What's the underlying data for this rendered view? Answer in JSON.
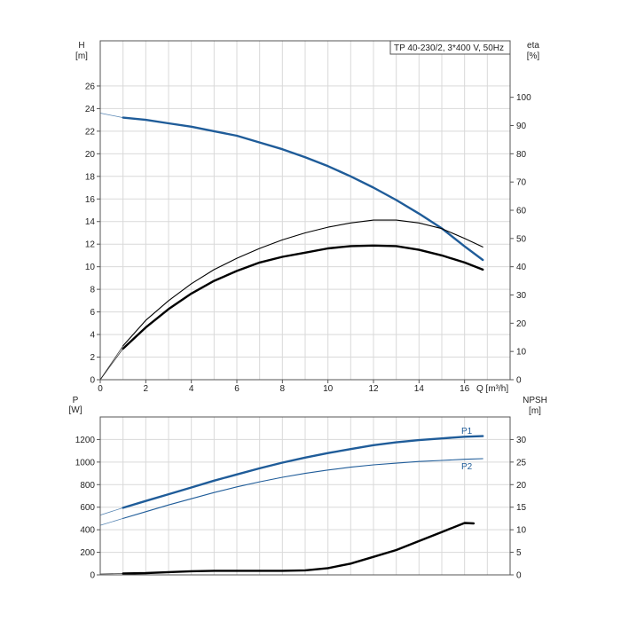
{
  "chart_data": [
    {
      "type": "line",
      "title": "TP 40-230/2, 3*400 V, 50Hz",
      "xlabel": "Q [m³/h]",
      "ylabel_line1": "H",
      "ylabel_line2": "[m]",
      "y2label_line1": "eta",
      "y2label_line2": "[%]",
      "xlim": [
        0,
        18
      ],
      "ylim": [
        0,
        30
      ],
      "y2lim": [
        0,
        120
      ],
      "x_ticks": [
        "0",
        "2",
        "4",
        "6",
        "8",
        "10",
        "12",
        "14",
        "16"
      ],
      "y_ticks": [
        "0",
        "2",
        "4",
        "6",
        "8",
        "10",
        "12",
        "14",
        "16",
        "18",
        "20",
        "22",
        "24",
        "26"
      ],
      "y2_ticks": [
        "0",
        "10",
        "20",
        "30",
        "40",
        "50",
        "60",
        "70",
        "80",
        "90",
        "100"
      ],
      "grid": true,
      "series": [
        {
          "axis": "left",
          "color": "#1f5c99",
          "style": "bold",
          "x": [
            1,
            2,
            3,
            4,
            5,
            6,
            7,
            8,
            9,
            10,
            11,
            12,
            13,
            14,
            15,
            16,
            16.8
          ],
          "values": [
            23.2,
            23.0,
            22.7,
            22.4,
            22.0,
            21.6,
            21.0,
            20.4,
            19.7,
            18.9,
            18.0,
            17.0,
            15.9,
            14.7,
            13.4,
            11.8,
            10.6
          ],
          "extension": {
            "x": [
              0,
              1
            ],
            "values": [
              23.6,
              23.2
            ]
          }
        },
        {
          "axis": "right",
          "color": "#000000",
          "style": "thin",
          "x": [
            1,
            2,
            3,
            4,
            5,
            6,
            7,
            8,
            9,
            10,
            11,
            12,
            13,
            14,
            15,
            16,
            16.8
          ],
          "values": [
            12,
            21,
            28,
            34,
            39,
            43,
            46.5,
            49.5,
            52,
            54,
            55.5,
            56.5,
            56.5,
            55.5,
            53.5,
            50,
            47
          ],
          "extension": {
            "x": [
              0,
              1
            ],
            "values": [
              0,
              12
            ]
          }
        },
        {
          "axis": "right",
          "color": "#000000",
          "style": "bold",
          "x": [
            1,
            2,
            3,
            4,
            5,
            6,
            7,
            8,
            9,
            10,
            11,
            12,
            13,
            14,
            15,
            16,
            16.8
          ],
          "values": [
            11,
            18.5,
            25,
            30.5,
            35,
            38.5,
            41.5,
            43.5,
            45,
            46.5,
            47.3,
            47.5,
            47.3,
            46,
            44,
            41.5,
            39
          ],
          "extension": {
            "x": [
              0,
              1
            ],
            "values": [
              0,
              11
            ]
          }
        }
      ]
    },
    {
      "type": "line",
      "xlim": [
        0,
        18
      ],
      "ylim": [
        0,
        1400
      ],
      "y2lim": [
        0,
        35
      ],
      "ylabel_line1": "P",
      "ylabel_line2": "[W]",
      "y2label_line1": "NPSH",
      "y2label_line2": "[m]",
      "y_ticks": [
        "0",
        "200",
        "400",
        "600",
        "800",
        "1000",
        "1200"
      ],
      "y2_ticks": [
        "0",
        "5",
        "10",
        "15",
        "20",
        "25",
        "30"
      ],
      "grid": true,
      "series": [
        {
          "name": "P1",
          "axis": "left",
          "color": "#1f5c99",
          "style": "bold",
          "x": [
            1,
            2,
            3,
            4,
            5,
            6,
            7,
            8,
            9,
            10,
            11,
            12,
            13,
            14,
            15,
            16,
            16.8
          ],
          "values": [
            595,
            655,
            715,
            775,
            835,
            890,
            945,
            995,
            1040,
            1080,
            1115,
            1150,
            1175,
            1195,
            1210,
            1225,
            1230
          ],
          "extension": {
            "x": [
              0,
              1
            ],
            "values": [
              530,
              595
            ]
          }
        },
        {
          "name": "P2",
          "axis": "left",
          "color": "#1f5c99",
          "style": "thin",
          "x": [
            1,
            2,
            3,
            4,
            5,
            6,
            7,
            8,
            9,
            10,
            11,
            12,
            13,
            14,
            15,
            16,
            16.8
          ],
          "values": [
            500,
            560,
            620,
            675,
            730,
            780,
            825,
            865,
            900,
            930,
            955,
            975,
            990,
            1005,
            1015,
            1025,
            1030
          ],
          "extension": {
            "x": [
              0,
              1
            ],
            "values": [
              440,
              500
            ]
          }
        },
        {
          "axis": "right",
          "color": "#000000",
          "style": "bold",
          "x": [
            1,
            2,
            3,
            4,
            5,
            6,
            7,
            8,
            9,
            10,
            11,
            12,
            13,
            14,
            15,
            16,
            16.4
          ],
          "values": [
            0.3,
            0.4,
            0.6,
            0.8,
            0.9,
            0.9,
            0.9,
            0.9,
            1.0,
            1.5,
            2.5,
            4.0,
            5.5,
            7.5,
            9.5,
            11.5,
            11.4
          ],
          "extension": {
            "x": [
              0,
              1
            ],
            "values": [
              0.2,
              0.3
            ]
          }
        }
      ]
    }
  ]
}
